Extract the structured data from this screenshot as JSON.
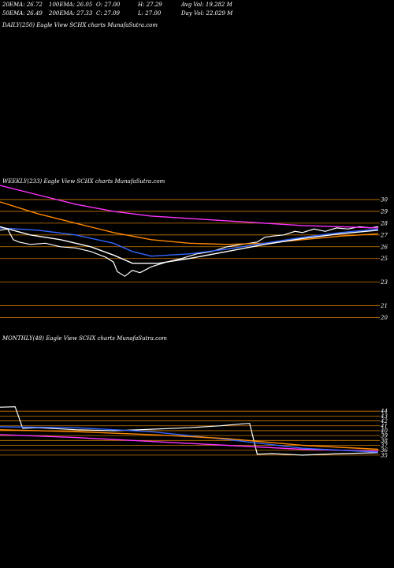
{
  "header": {
    "row1": [
      "20EMA: 26.72",
      "100EMA: 26.05",
      "O: 27.00",
      "H: 27.29",
      "Avg Vol: 19.282  M"
    ],
    "row2": [
      "50EMA: 26.49",
      "200EMA: 27.33",
      "C: 27.09",
      "L: 27.00",
      "Day Vol: 22.029 M"
    ]
  },
  "panels": {
    "daily": "DAILY(250) Eagle  View  SCHX  charts MunafaSutra.com",
    "weekly": "WEEKLY(233) Eagle  View  SCHX  charts MunafaSutra.com",
    "monthly": "MONTHLY(48) Eagle  View  SCHX  charts MunafaSutra.com"
  },
  "colors": {
    "background": "#000000",
    "price": "#ffffff",
    "ema_magenta": "#ff33ff",
    "ema_blue": "#3366ff",
    "ema_orange": "#ff8800",
    "support_lines": "#cc7a00"
  },
  "chart_data": [
    {
      "type": "line",
      "title": "DAILY(250) Eagle  View  SCHX  charts MunafaSutra.com",
      "series": []
    },
    {
      "type": "line",
      "title": "WEEKLY(233) Eagle  View  SCHX  charts MunafaSutra.com",
      "y_tick_labels": [
        "30",
        "29",
        "28",
        "27",
        "26",
        "25",
        "23",
        "21",
        "20"
      ],
      "ylim": [
        19.5,
        31
      ],
      "series": [
        {
          "role": "price",
          "color": "#ffffff",
          "points": [
            [
              0,
              27.4
            ],
            [
              0.02,
              27.5
            ],
            [
              0.035,
              26.6
            ],
            [
              0.05,
              26.4
            ],
            [
              0.08,
              26.2
            ],
            [
              0.12,
              26.3
            ],
            [
              0.16,
              26.0
            ],
            [
              0.2,
              25.9
            ],
            [
              0.24,
              25.6
            ],
            [
              0.28,
              25.1
            ],
            [
              0.3,
              24.7
            ],
            [
              0.31,
              23.9
            ],
            [
              0.33,
              23.5
            ],
            [
              0.35,
              24.0
            ],
            [
              0.37,
              23.8
            ],
            [
              0.4,
              24.3
            ],
            [
              0.44,
              24.7
            ],
            [
              0.48,
              25.0
            ],
            [
              0.52,
              25.4
            ],
            [
              0.56,
              25.6
            ],
            [
              0.6,
              26.0
            ],
            [
              0.64,
              26.2
            ],
            [
              0.68,
              26.4
            ],
            [
              0.7,
              26.8
            ],
            [
              0.72,
              26.9
            ],
            [
              0.75,
              27.0
            ],
            [
              0.78,
              27.3
            ],
            [
              0.8,
              27.2
            ],
            [
              0.83,
              27.5
            ],
            [
              0.86,
              27.3
            ],
            [
              0.89,
              27.6
            ],
            [
              0.92,
              27.5
            ],
            [
              0.95,
              27.7
            ],
            [
              0.98,
              27.6
            ],
            [
              1,
              27.7
            ]
          ]
        },
        {
          "role": "EMA",
          "color": "#ff33ff",
          "points": [
            [
              0,
              31.2
            ],
            [
              0.1,
              30.4
            ],
            [
              0.2,
              29.6
            ],
            [
              0.3,
              29.0
            ],
            [
              0.4,
              28.6
            ],
            [
              0.5,
              28.4
            ],
            [
              0.6,
              28.2
            ],
            [
              0.7,
              28.0
            ],
            [
              0.8,
              27.8
            ],
            [
              0.9,
              27.7
            ],
            [
              1,
              27.6
            ]
          ]
        },
        {
          "role": "EMA",
          "color": "#ff8800",
          "points": [
            [
              0,
              29.8
            ],
            [
              0.1,
              28.8
            ],
            [
              0.2,
              28.0
            ],
            [
              0.3,
              27.2
            ],
            [
              0.4,
              26.6
            ],
            [
              0.5,
              26.3
            ],
            [
              0.6,
              26.2
            ],
            [
              0.7,
              26.3
            ],
            [
              0.8,
              26.6
            ],
            [
              0.9,
              26.9
            ],
            [
              1,
              27.1
            ]
          ]
        },
        {
          "role": "EMA",
          "color": "#3366ff",
          "points": [
            [
              0,
              27.6
            ],
            [
              0.1,
              27.4
            ],
            [
              0.2,
              27.0
            ],
            [
              0.3,
              26.3
            ],
            [
              0.35,
              25.6
            ],
            [
              0.4,
              25.2
            ],
            [
              0.5,
              25.4
            ],
            [
              0.6,
              25.8
            ],
            [
              0.7,
              26.3
            ],
            [
              0.8,
              26.8
            ],
            [
              0.9,
              27.2
            ],
            [
              1,
              27.5
            ]
          ]
        },
        {
          "role": "EMA",
          "color": "#ffffff",
          "points": [
            [
              0,
              27.7
            ],
            [
              0.08,
              27.0
            ],
            [
              0.16,
              26.6
            ],
            [
              0.24,
              26.0
            ],
            [
              0.3,
              25.3
            ],
            [
              0.35,
              24.6
            ],
            [
              0.42,
              24.6
            ],
            [
              0.5,
              25.0
            ],
            [
              0.6,
              25.6
            ],
            [
              0.7,
              26.2
            ],
            [
              0.8,
              26.7
            ],
            [
              0.9,
              27.1
            ],
            [
              1,
              27.4
            ]
          ]
        }
      ]
    },
    {
      "type": "line",
      "title": "MONTHLY(48) Eagle  View  SCHX  charts MunafaSutra.com",
      "y_tick_labels": [
        "44",
        "43",
        "42",
        "41",
        "40",
        "39",
        "38",
        "37",
        "36",
        "35"
      ],
      "ylim": [
        34.5,
        45
      ],
      "series": [
        {
          "role": "price",
          "color": "#ffffff",
          "points": [
            [
              0,
              44.8
            ],
            [
              0.04,
              44.9
            ],
            [
              0.06,
              40.5
            ],
            [
              0.1,
              40.6
            ],
            [
              0.2,
              40.2
            ],
            [
              0.3,
              40.0
            ],
            [
              0.4,
              40.3
            ],
            [
              0.5,
              40.6
            ],
            [
              0.58,
              41.0
            ],
            [
              0.64,
              41.4
            ],
            [
              0.66,
              41.5
            ],
            [
              0.68,
              35.2
            ],
            [
              0.72,
              35.3
            ],
            [
              0.8,
              35.0
            ],
            [
              0.9,
              35.3
            ],
            [
              1,
              35.5
            ]
          ]
        },
        {
          "role": "EMA",
          "color": "#ff33ff",
          "points": [
            [
              0,
              39.2
            ],
            [
              0.2,
              38.6
            ],
            [
              0.4,
              37.8
            ],
            [
              0.6,
              37.0
            ],
            [
              0.8,
              36.2
            ],
            [
              1,
              35.8
            ]
          ]
        },
        {
          "role": "EMA",
          "color": "#3366ff",
          "points": [
            [
              0,
              40.8
            ],
            [
              0.2,
              40.6
            ],
            [
              0.4,
              39.8
            ],
            [
              0.6,
              38.2
            ],
            [
              0.8,
              36.4
            ],
            [
              1,
              35.6
            ]
          ]
        },
        {
          "role": "EMA",
          "color": "#ff8800",
          "points": [
            [
              0,
              40.2
            ],
            [
              0.2,
              39.8
            ],
            [
              0.4,
              39.2
            ],
            [
              0.6,
              38.4
            ],
            [
              0.8,
              37.0
            ],
            [
              1,
              36.2
            ]
          ]
        }
      ]
    }
  ]
}
